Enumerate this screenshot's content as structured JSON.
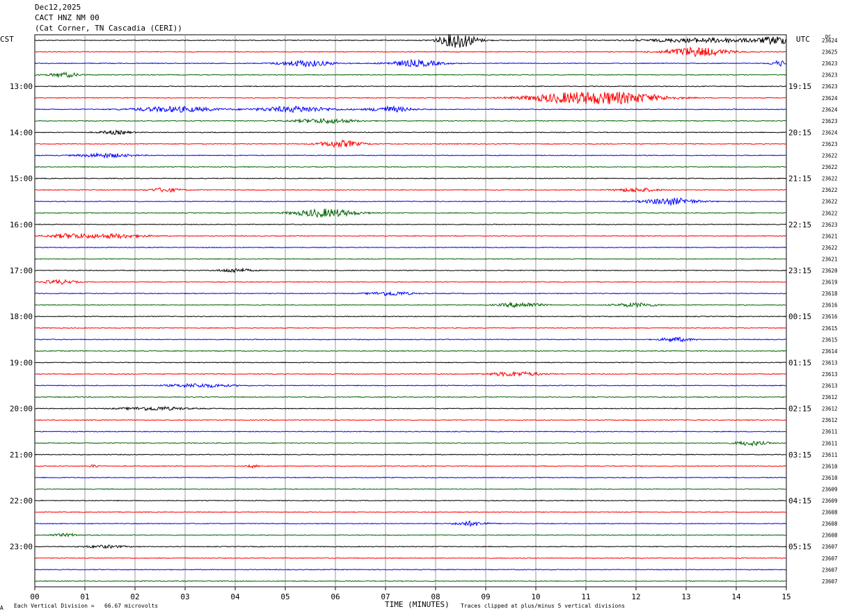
{
  "header": {
    "date": "Dec12,2025",
    "station": "CACT HNZ NM 00",
    "location": "(Cat Corner, TN Cascadia (CERI))"
  },
  "left_zone": "CST",
  "right_zone": "UTC",
  "dc_label": "DC",
  "footer": {
    "scale_note": "Each Vertical Division =   66.67 microvolts",
    "clip_note": "Traces clipped at plus/minus 5 vertical divisions",
    "mark": "A"
  },
  "chart_data": {
    "type": "line",
    "title": "",
    "xlabel": "TIME (MINUTES)",
    "ylabel": "",
    "xlim": [
      0,
      15
    ],
    "x_ticks": [
      "00",
      "01",
      "02",
      "03",
      "04",
      "05",
      "06",
      "07",
      "08",
      "09",
      "10",
      "11",
      "12",
      "13",
      "14",
      "15"
    ],
    "grid": true,
    "trace_colors": [
      "#000000",
      "#ff0000",
      "#0000ff",
      "#006400"
    ],
    "trace_minutes": 15,
    "trace_count": 48,
    "left_time_labels": [
      {
        "trace": 4,
        "label": "13:00"
      },
      {
        "trace": 8,
        "label": "14:00"
      },
      {
        "trace": 12,
        "label": "15:00"
      },
      {
        "trace": 16,
        "label": "16:00"
      },
      {
        "trace": 20,
        "label": "17:00"
      },
      {
        "trace": 24,
        "label": "18:00"
      },
      {
        "trace": 28,
        "label": "19:00"
      },
      {
        "trace": 32,
        "label": "20:00"
      },
      {
        "trace": 36,
        "label": "21:00"
      },
      {
        "trace": 40,
        "label": "22:00"
      },
      {
        "trace": 44,
        "label": "23:00"
      }
    ],
    "right_time_labels": [
      {
        "trace": 4,
        "label": "19:15"
      },
      {
        "trace": 8,
        "label": "20:15"
      },
      {
        "trace": 12,
        "label": "21:15"
      },
      {
        "trace": 16,
        "label": "22:15"
      },
      {
        "trace": 20,
        "label": "23:15"
      },
      {
        "trace": 24,
        "label": "00:15"
      },
      {
        "trace": 28,
        "label": "01:15"
      },
      {
        "trace": 32,
        "label": "02:15"
      },
      {
        "trace": 36,
        "label": "03:15"
      },
      {
        "trace": 40,
        "label": "04:15"
      },
      {
        "trace": 44,
        "label": "05:15"
      }
    ],
    "dc_values": [
      "23624",
      "23625",
      "23623",
      "23623",
      "23623",
      "23624",
      "23624",
      "23623",
      "23624",
      "23623",
      "23622",
      "23622",
      "23622",
      "23622",
      "23622",
      "23622",
      "23623",
      "23621",
      "23622",
      "23621",
      "23620",
      "23619",
      "23618",
      "23616",
      "23616",
      "23615",
      "23615",
      "23614",
      "23613",
      "23613",
      "23613",
      "23612",
      "23612",
      "23612",
      "23611",
      "23611",
      "23611",
      "23610",
      "23610",
      "23609",
      "23609",
      "23608",
      "23608",
      "23608",
      "23607",
      "23607",
      "23607",
      "23607"
    ],
    "events": [
      {
        "trace": 0,
        "minute": 8.45,
        "amp": 3.5,
        "dur": 0.35
      },
      {
        "trace": 0,
        "minute": 13.5,
        "amp": 1.0,
        "dur": 1.2
      },
      {
        "trace": 0,
        "minute": 14.8,
        "amp": 1.5,
        "dur": 0.3
      },
      {
        "trace": 1,
        "minute": 13.2,
        "amp": 2.0,
        "dur": 0.6
      },
      {
        "trace": 2,
        "minute": 5.4,
        "amp": 1.4,
        "dur": 0.5
      },
      {
        "trace": 2,
        "minute": 7.6,
        "amp": 1.4,
        "dur": 0.5
      },
      {
        "trace": 2,
        "minute": 14.9,
        "amp": 1.2,
        "dur": 0.2
      },
      {
        "trace": 3,
        "minute": 0.6,
        "amp": 1.0,
        "dur": 0.3
      },
      {
        "trace": 5,
        "minute": 10.7,
        "amp": 2.2,
        "dur": 0.9
      },
      {
        "trace": 5,
        "minute": 11.8,
        "amp": 2.0,
        "dur": 0.8
      },
      {
        "trace": 6,
        "minute": 2.8,
        "amp": 1.2,
        "dur": 0.8
      },
      {
        "trace": 6,
        "minute": 5.2,
        "amp": 1.3,
        "dur": 0.7
      },
      {
        "trace": 6,
        "minute": 7.1,
        "amp": 1.2,
        "dur": 0.4
      },
      {
        "trace": 7,
        "minute": 5.8,
        "amp": 1.0,
        "dur": 0.6
      },
      {
        "trace": 8,
        "minute": 1.6,
        "amp": 0.8,
        "dur": 0.3
      },
      {
        "trace": 9,
        "minute": 6.1,
        "amp": 1.5,
        "dur": 0.4
      },
      {
        "trace": 10,
        "minute": 1.4,
        "amp": 0.9,
        "dur": 0.5
      },
      {
        "trace": 13,
        "minute": 2.6,
        "amp": 0.9,
        "dur": 0.3
      },
      {
        "trace": 13,
        "minute": 12.0,
        "amp": 0.9,
        "dur": 0.4
      },
      {
        "trace": 14,
        "minute": 12.7,
        "amp": 1.5,
        "dur": 0.5
      },
      {
        "trace": 15,
        "minute": 5.8,
        "amp": 1.8,
        "dur": 0.6
      },
      {
        "trace": 17,
        "minute": 0.7,
        "amp": 1.0,
        "dur": 0.4
      },
      {
        "trace": 17,
        "minute": 1.6,
        "amp": 0.9,
        "dur": 0.6
      },
      {
        "trace": 20,
        "minute": 4.0,
        "amp": 0.9,
        "dur": 0.3
      },
      {
        "trace": 21,
        "minute": 0.5,
        "amp": 0.9,
        "dur": 0.3
      },
      {
        "trace": 22,
        "minute": 7.1,
        "amp": 0.9,
        "dur": 0.4
      },
      {
        "trace": 23,
        "minute": 9.7,
        "amp": 1.1,
        "dur": 0.4
      },
      {
        "trace": 23,
        "minute": 12.0,
        "amp": 0.9,
        "dur": 0.4
      },
      {
        "trace": 26,
        "minute": 12.8,
        "amp": 0.9,
        "dur": 0.3
      },
      {
        "trace": 29,
        "minute": 9.6,
        "amp": 1.0,
        "dur": 0.5
      },
      {
        "trace": 30,
        "minute": 3.3,
        "amp": 0.8,
        "dur": 0.6
      },
      {
        "trace": 32,
        "minute": 2.4,
        "amp": 0.8,
        "dur": 0.6
      },
      {
        "trace": 35,
        "minute": 14.3,
        "amp": 1.0,
        "dur": 0.3
      },
      {
        "trace": 37,
        "minute": 1.2,
        "amp": 0.6,
        "dur": 0.1
      },
      {
        "trace": 37,
        "minute": 4.35,
        "amp": 0.6,
        "dur": 0.1
      },
      {
        "trace": 42,
        "minute": 8.7,
        "amp": 1.0,
        "dur": 0.3
      },
      {
        "trace": 43,
        "minute": 0.6,
        "amp": 0.6,
        "dur": 0.3
      },
      {
        "trace": 44,
        "minute": 1.4,
        "amp": 0.6,
        "dur": 0.4
      }
    ]
  }
}
